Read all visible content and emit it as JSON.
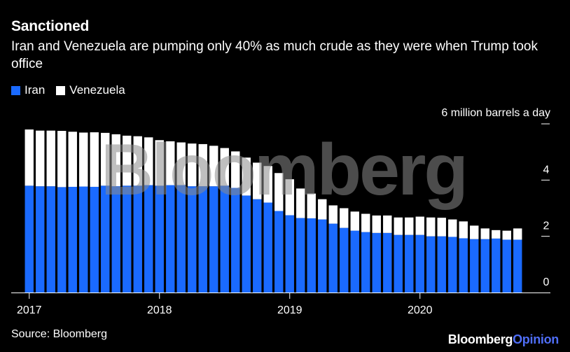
{
  "header": {
    "title": "Sanctioned",
    "subtitle": "Iran and Venezuela are pumping only 40% as much crude as they were when Trump took office"
  },
  "footer": {
    "source": "Source: Bloomberg",
    "brand_main": "Bloomberg",
    "brand_accent": "Opinion"
  },
  "watermark": "Bloomberg",
  "colors": {
    "iran": "#1a6aff",
    "venezuela": "#ffffff",
    "background": "#000000",
    "brand_accent": "#4f6ef7"
  },
  "chart_data": {
    "type": "bar",
    "stacked": true,
    "title": "Sanctioned",
    "subtitle": "Iran and Venezuela are pumping only 40% as much crude as they were when Trump took office",
    "ylabel": "6 million barrels a day",
    "ylim": [
      0,
      6
    ],
    "yticks": [
      0,
      2,
      4,
      6
    ],
    "ytick_labels": [
      "0",
      "2",
      "4",
      ""
    ],
    "unit_label": "6 million barrels a day",
    "x_labels": [
      "2017",
      "2018",
      "2019",
      "2020"
    ],
    "x_label_bar_index": [
      0,
      12,
      24,
      36
    ],
    "legend": [
      {
        "name": "Iran",
        "color": "#1a6aff"
      },
      {
        "name": "Venezuela",
        "color": "#ffffff"
      }
    ],
    "series": [
      {
        "name": "Iran",
        "values": [
          3.8,
          3.78,
          3.78,
          3.75,
          3.76,
          3.77,
          3.76,
          3.8,
          3.78,
          3.8,
          3.8,
          3.82,
          3.8,
          3.82,
          3.82,
          3.78,
          3.78,
          3.78,
          3.8,
          3.72,
          3.45,
          3.32,
          3.2,
          2.9,
          2.75,
          2.65,
          2.64,
          2.6,
          2.45,
          2.3,
          2.2,
          2.15,
          2.12,
          2.12,
          2.05,
          2.05,
          2.05,
          2.0,
          2.0,
          1.98,
          1.93,
          1.9,
          1.9,
          1.92,
          1.88,
          1.88
        ]
      },
      {
        "name": "Venezuela",
        "values": [
          2.0,
          1.98,
          1.98,
          2.0,
          1.96,
          1.92,
          1.94,
          1.88,
          1.85,
          1.78,
          1.76,
          1.7,
          1.62,
          1.56,
          1.52,
          1.52,
          1.5,
          1.44,
          1.34,
          1.3,
          1.35,
          1.3,
          1.3,
          1.35,
          1.28,
          1.05,
          0.88,
          0.72,
          0.65,
          0.7,
          0.68,
          0.65,
          0.62,
          0.62,
          0.62,
          0.62,
          0.65,
          0.67,
          0.66,
          0.62,
          0.6,
          0.48,
          0.38,
          0.3,
          0.32,
          0.4
        ]
      }
    ]
  }
}
